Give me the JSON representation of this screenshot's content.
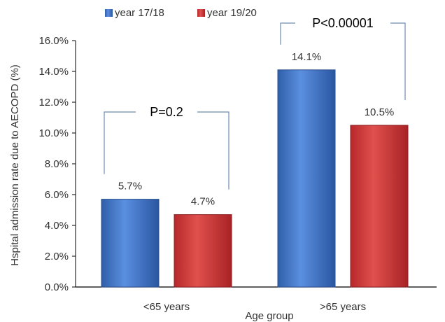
{
  "chart_data": {
    "type": "bar",
    "categories": [
      "<65 years",
      ">65 years"
    ],
    "series": [
      {
        "name": "year 17/18",
        "values": [
          5.7,
          14.1
        ],
        "labels": [
          "5.7%",
          "14.1%"
        ],
        "color": "#4472C4"
      },
      {
        "name": "year 19/20",
        "values": [
          4.7,
          10.5
        ],
        "labels": [
          "4.7%",
          "10.5%"
        ],
        "color": "#C9302C"
      }
    ],
    "xlabel": "Age group",
    "ylabel": "Hspital admission rate due to AECOPD (%)",
    "ylim": [
      0,
      16
    ],
    "yticks": [
      0,
      2,
      4,
      6,
      8,
      10,
      12,
      14,
      16
    ],
    "ytick_labels": [
      "0.0%",
      "2.0%",
      "4.0%",
      "6.0%",
      "8.0%",
      "10.0%",
      "12.0%",
      "14.0%",
      "16.0%"
    ],
    "legend_position": "top",
    "grid": false,
    "annotations": [
      {
        "text": "P=0.2",
        "category_index": 0
      },
      {
        "text": "P<0.00001",
        "category_index": 1
      }
    ]
  }
}
